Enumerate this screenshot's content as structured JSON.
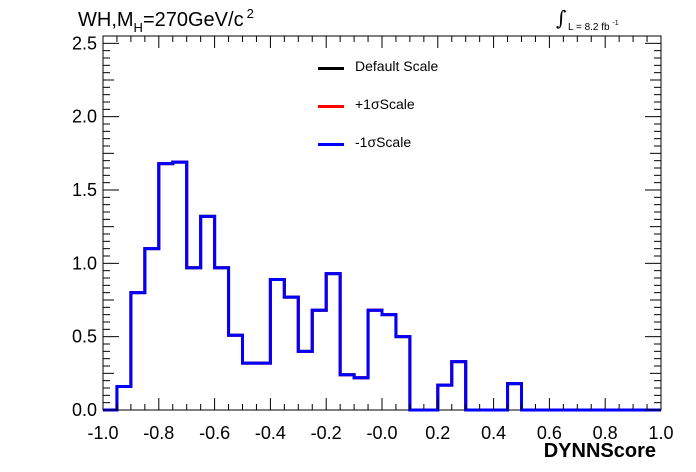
{
  "header": {
    "title_main": "WH,M",
    "title_sub": "H",
    "title_rest": "=270GeV/c",
    "title_sup": "2",
    "lumi_symbol": "∫",
    "lumi_text": "L = 8.2 fb",
    "lumi_sup": "-1"
  },
  "legend": [
    {
      "label": "Default Scale",
      "color": "#000000"
    },
    {
      "label": "+1σScale",
      "color": "#ff0000"
    },
    {
      "label": "-1σScale",
      "color": "#0000ff"
    }
  ],
  "chart_data": {
    "type": "line",
    "style": "step-histogram",
    "title": "WH,MH=270GeV/c 2",
    "xlabel": "DYNNScore",
    "ylabel": "",
    "xlim": [
      -1.0,
      1.0
    ],
    "ylim": [
      0,
      2.55
    ],
    "x_ticks": [
      -1.0,
      -0.8,
      -0.6,
      -0.4,
      -0.2,
      0.0,
      0.2,
      0.4,
      0.6,
      0.8,
      1.0
    ],
    "x_tick_labels": [
      "-1.0",
      "-0.8",
      "-0.6",
      "-0.4",
      "-0.2",
      "-0.0",
      "0.2",
      "0.4",
      "0.6",
      "0.8",
      "1.0"
    ],
    "y_ticks": [
      0.0,
      0.5,
      1.0,
      1.5,
      2.0,
      2.5
    ],
    "y_tick_labels": [
      "0.0",
      "0.5",
      "1.0",
      "1.5",
      "2.0",
      "2.5"
    ],
    "bin_edges": [
      -1.0,
      -0.95,
      -0.9,
      -0.85,
      -0.8,
      -0.75,
      -0.7,
      -0.65,
      -0.6,
      -0.55,
      -0.5,
      -0.45,
      -0.4,
      -0.35,
      -0.3,
      -0.25,
      -0.2,
      -0.15,
      -0.1,
      -0.05,
      0.0,
      0.05,
      0.1,
      0.15,
      0.2,
      0.25,
      0.3,
      0.35,
      0.4,
      0.45,
      0.5,
      0.55,
      0.6,
      0.65,
      0.7,
      0.75,
      0.8,
      0.85,
      0.9,
      0.95,
      1.0
    ],
    "grid": false,
    "legend_position": "top-center",
    "series": [
      {
        "name": "Default Scale",
        "color": "#000000",
        "values": [
          0,
          0.16,
          0.8,
          1.1,
          1.68,
          1.69,
          0.97,
          1.32,
          0.97,
          0.51,
          0.32,
          0.32,
          0.89,
          0.77,
          0.4,
          0.68,
          0.93,
          0.24,
          0.22,
          0.68,
          0.65,
          0.5,
          0,
          0,
          0.17,
          0.33,
          0,
          0,
          0,
          0.18,
          0,
          0,
          0,
          0,
          0,
          0,
          0,
          0,
          0,
          0
        ]
      },
      {
        "name": "+1σScale",
        "color": "#ff0000",
        "values": [
          0,
          0.16,
          0.8,
          1.1,
          1.68,
          1.69,
          0.97,
          1.32,
          0.97,
          0.51,
          0.32,
          0.32,
          0.89,
          0.77,
          0.4,
          0.68,
          0.93,
          0.24,
          0.22,
          0.68,
          0.65,
          0.5,
          0,
          0,
          0.17,
          0.33,
          0,
          0,
          0,
          0.18,
          0,
          0,
          0,
          0,
          0,
          0,
          0,
          0,
          0,
          0
        ]
      },
      {
        "name": "-1σScale",
        "color": "#0000ff",
        "values": [
          0,
          0.16,
          0.8,
          1.1,
          1.68,
          1.69,
          0.97,
          1.32,
          0.97,
          0.51,
          0.32,
          0.32,
          0.89,
          0.77,
          0.4,
          0.68,
          0.93,
          0.24,
          0.22,
          0.68,
          0.65,
          0.5,
          0,
          0,
          0.17,
          0.33,
          0,
          0,
          0,
          0.18,
          0,
          0,
          0,
          0,
          0,
          0,
          0,
          0,
          0,
          0
        ]
      }
    ]
  }
}
